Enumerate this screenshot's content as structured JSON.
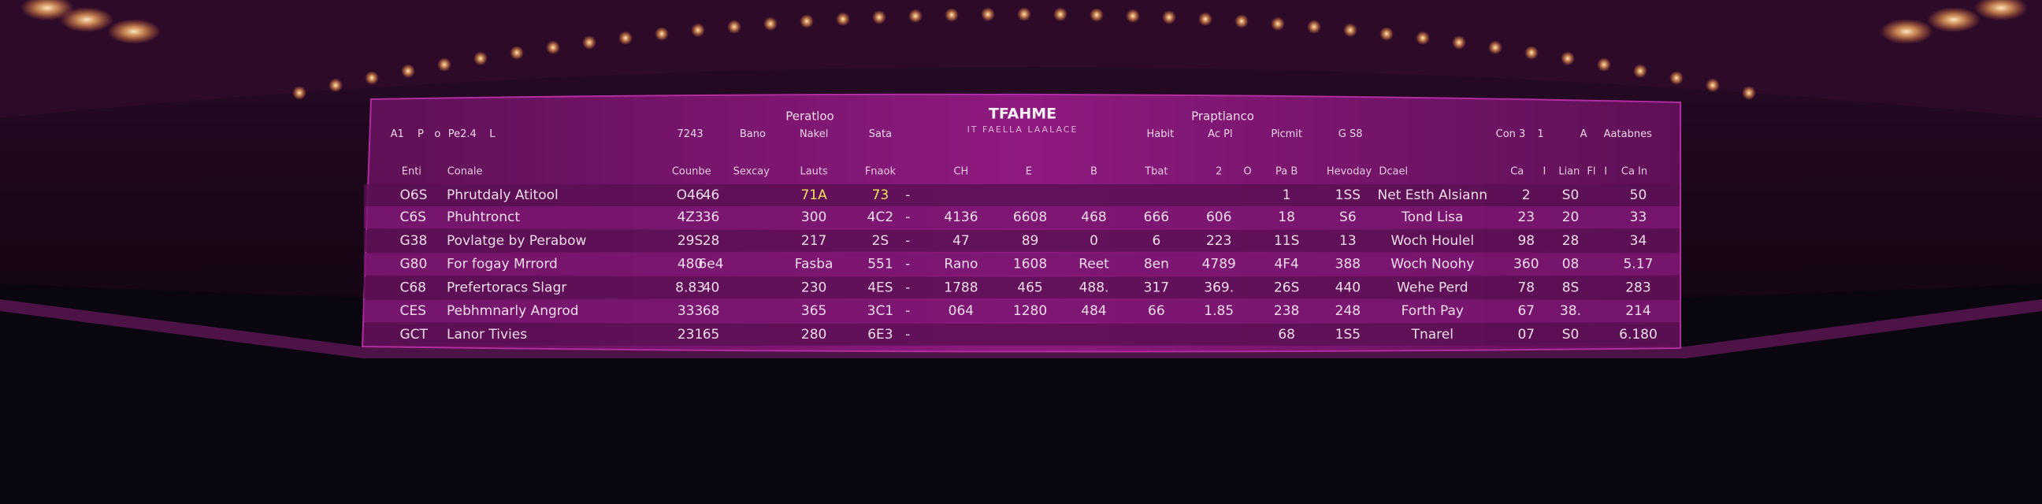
{
  "header": {
    "title": "TFAHME",
    "subtitle": "IT FAELLA LAALACE",
    "groups": [
      "Peratloo",
      "Praptlanco"
    ]
  },
  "top_line": [
    "A1",
    "P",
    "o",
    "Pe2.4",
    "L",
    "7243",
    "Bano",
    "Nakel",
    "Sata",
    "Habit",
    "Ac Pl",
    "Picmit",
    "G S8",
    "Con 3",
    "1",
    "A",
    "Aatabnes"
  ],
  "table": {
    "columns": [
      "Enti",
      "Conale",
      "Counbe",
      "Sexcay",
      "Lauts",
      "Fnaok",
      "CH",
      "E",
      "B",
      "Tbat",
      "2",
      "O",
      "Pa B",
      "Hevoday",
      "Dcael",
      "Ca",
      "I",
      "Lian",
      "Fl",
      "I",
      "Ca In"
    ],
    "rows": [
      [
        "O6S",
        "Phrutdaly Atitool",
        "O46",
        "46",
        "71A",
        "73",
        "-",
        null,
        null,
        null,
        null,
        null,
        "1",
        "1SS",
        "Net Esth Alsiann",
        "2",
        "S0",
        "50"
      ],
      [
        "C6S",
        "Phuhtronct",
        "4Z3",
        "36",
        "300",
        "4C2",
        "-",
        "4136",
        "6608",
        "468",
        "666",
        "606",
        "18",
        "S6",
        "Tond Lisa",
        "23",
        "20",
        "33"
      ],
      [
        "G38",
        "Povlatge by Perabow",
        "29S",
        "28",
        "217",
        "2S",
        "-",
        "47",
        "89",
        "0",
        "6",
        "223",
        "11S",
        "13",
        "Woch Houlel",
        "98",
        "28",
        "34"
      ],
      [
        "G80",
        "For fogay Mrrord",
        "480",
        "6e4",
        "Fasba",
        "551",
        "-",
        "Rano",
        "1608",
        "Reet",
        "8en",
        "4789",
        "4F4",
        "388",
        "Woch Noohy",
        "360",
        "08",
        "5.17"
      ],
      [
        "C68",
        "Prefertoracs Slagr",
        "8.83",
        "40",
        "230",
        "4ES",
        "-",
        "1788",
        "465",
        "488.",
        "317",
        "369.",
        "26S",
        "440",
        "Wehe Perd",
        "78",
        "8S",
        "283"
      ],
      [
        "CES",
        "Pebhmnarly Angrod",
        "333",
        "68",
        "365",
        "3C1",
        "-",
        "064",
        "1280",
        "484",
        "66",
        "1.85",
        "238",
        "248",
        "Forth Pay",
        "67",
        "38.",
        "214"
      ],
      [
        "GCT",
        "Lanor Tivies",
        "231",
        "65",
        "280",
        "6E3",
        "-",
        null,
        null,
        null,
        null,
        null,
        "68",
        "1S5",
        "Tnarel",
        "07",
        "S0",
        "6.180"
      ]
    ]
  }
}
